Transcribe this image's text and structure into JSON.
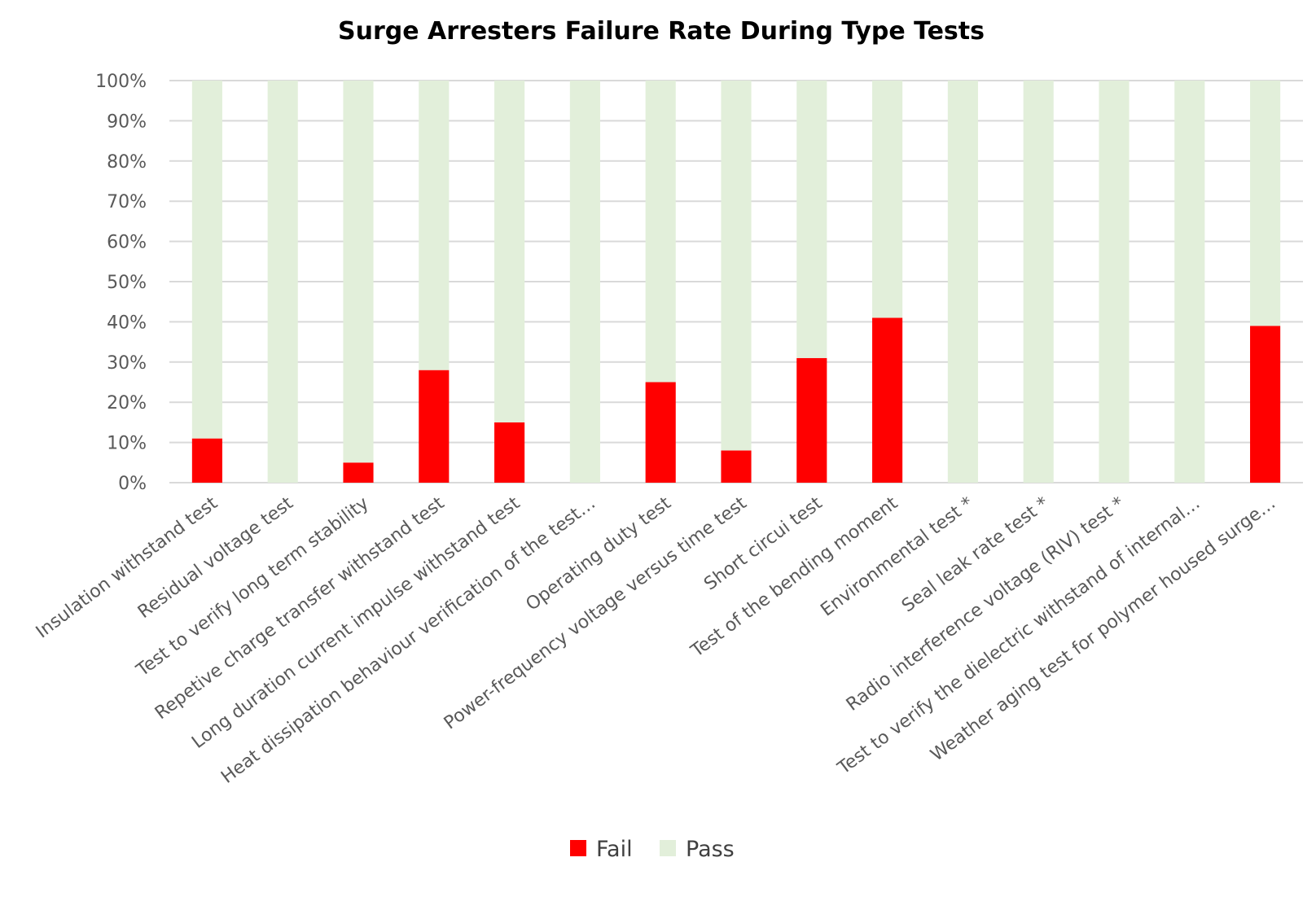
{
  "chart_data": {
    "type": "bar",
    "stacked": true,
    "title": "Surge Arresters Failure Rate During Type Tests",
    "xlabel": "",
    "ylabel": "",
    "ylim": [
      0,
      1
    ],
    "y_ticks": [
      "0%",
      "10%",
      "20%",
      "30%",
      "40%",
      "50%",
      "60%",
      "70%",
      "80%",
      "90%",
      "100%"
    ],
    "y_tick_values": [
      0,
      0.1,
      0.2,
      0.3,
      0.4,
      0.5,
      0.6,
      0.7,
      0.8,
      0.9,
      1.0
    ],
    "grid": true,
    "legend_position": "bottom",
    "categories": [
      "Insulation withstand test",
      "Residual voltage test",
      "Test to verify long term stability",
      "Repetive charge transfer withstand test",
      "Long duration current impulse withstand test",
      "Heat dissipation behaviour verification of the test…",
      "Operating duty test",
      "Power-frequency voltage versus time test",
      "Short circui test",
      "Test of the bending moment",
      "Environmental test *",
      "Seal leak rate test *",
      "Radio interference voltage (RIV) test *",
      "Test to verify the dielectric withstand of internal…",
      "Weather aging test for polymer housed surge…"
    ],
    "series": [
      {
        "name": "Fail",
        "color": "#ff0000",
        "values": [
          0.11,
          0,
          0.05,
          0.28,
          0.15,
          0,
          0.25,
          0.08,
          0.31,
          0.41,
          0,
          0,
          0,
          0,
          0.39
        ]
      },
      {
        "name": "Pass",
        "color": "#e2efda",
        "values": [
          0.89,
          1.0,
          0.95,
          0.72,
          0.85,
          1.0,
          0.75,
          0.92,
          0.69,
          0.59,
          1.0,
          1.0,
          1.0,
          1.0,
          0.61
        ]
      }
    ]
  }
}
